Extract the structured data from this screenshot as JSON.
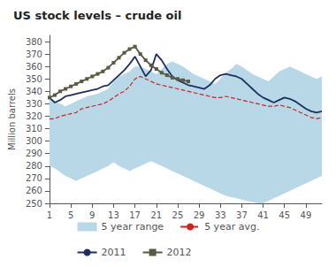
{
  "chart_data": {
    "type": "line",
    "title": "US stock levels – crude oil",
    "ylabel": "Million barrels",
    "x": [
      1,
      2,
      3,
      4,
      5,
      6,
      7,
      8,
      9,
      10,
      11,
      12,
      13,
      14,
      15,
      16,
      17,
      18,
      19,
      20,
      21,
      22,
      23,
      24,
      25,
      26,
      27,
      28,
      29,
      30,
      31,
      32,
      33,
      34,
      35,
      36,
      37,
      38,
      39,
      40,
      41,
      42,
      43,
      44,
      45,
      46,
      47,
      48,
      49,
      50,
      51,
      52
    ],
    "xlim": [
      1,
      52
    ],
    "xticks": [
      1,
      5,
      9,
      13,
      17,
      21,
      25,
      29,
      33,
      37,
      41,
      45,
      49
    ],
    "ylim": [
      250,
      385
    ],
    "yticks": [
      250,
      260,
      270,
      280,
      290,
      300,
      310,
      320,
      330,
      340,
      350,
      360,
      370,
      380
    ],
    "grid": false,
    "legend": "bottom",
    "series": [
      {
        "name": "5 year range",
        "type": "range",
        "color": "#b8d8e8",
        "low": [
          280,
          278,
          275,
          272,
          270,
          268,
          270,
          272,
          274,
          276,
          278,
          280,
          283,
          280,
          278,
          276,
          278,
          280,
          282,
          284,
          282,
          280,
          278,
          276,
          274,
          272,
          270,
          268,
          266,
          264,
          262,
          260,
          258,
          256,
          255,
          254,
          253,
          252,
          251,
          250,
          250,
          252,
          254,
          256,
          258,
          260,
          262,
          264,
          266,
          268,
          270,
          272
        ],
        "high": [
          334,
          332,
          330,
          328,
          330,
          332,
          334,
          336,
          337,
          338,
          340,
          342,
          348,
          352,
          354,
          356,
          360,
          360,
          358,
          356,
          354,
          358,
          362,
          364,
          362,
          360,
          357,
          354,
          352,
          350,
          348,
          346,
          350,
          355,
          358,
          362,
          360,
          357,
          354,
          352,
          350,
          348,
          352,
          356,
          358,
          360,
          358,
          356,
          354,
          352,
          350,
          352
        ]
      },
      {
        "name": "5 year avg.",
        "type": "line",
        "color": "#cc2222",
        "line_style": "dashed",
        "values": [
          318,
          318,
          320,
          321,
          322,
          323,
          326,
          327,
          328,
          329,
          330,
          332,
          335,
          338,
          340,
          344,
          350,
          352,
          350,
          348,
          346,
          345,
          344,
          343,
          342,
          341,
          340,
          339,
          338,
          337,
          336,
          335,
          335,
          336,
          335,
          334,
          333,
          332,
          331,
          330,
          329,
          328,
          328,
          329,
          328,
          327,
          325,
          323,
          321,
          319,
          318,
          319
        ]
      },
      {
        "name": "2011",
        "type": "line",
        "color": "#1c2f5e",
        "line_style": "solid",
        "values": [
          335,
          331,
          333,
          336,
          337,
          338,
          339,
          340,
          341,
          342,
          344,
          345,
          349,
          353,
          357,
          362,
          368,
          360,
          352,
          357,
          370,
          365,
          358,
          352,
          349,
          347,
          345,
          344,
          343,
          342,
          345,
          350,
          353,
          354,
          353,
          352,
          350,
          346,
          342,
          338,
          335,
          333,
          331,
          333,
          335,
          334,
          332,
          329,
          326,
          324,
          323,
          324
        ]
      },
      {
        "name": "2012",
        "type": "line",
        "color": "#5a5a42",
        "line_style": "solid",
        "marker": "square",
        "values": [
          335,
          337,
          340,
          342,
          344,
          346,
          348,
          350,
          352,
          354,
          356,
          359,
          363,
          367,
          371,
          374,
          376,
          370,
          365,
          361,
          358,
          355,
          353,
          351,
          350,
          349,
          348,
          null,
          null,
          null,
          null,
          null,
          null,
          null,
          null,
          null,
          null,
          null,
          null,
          null,
          null,
          null,
          null,
          null,
          null,
          null,
          null,
          null,
          null,
          null,
          null,
          null
        ]
      }
    ]
  }
}
